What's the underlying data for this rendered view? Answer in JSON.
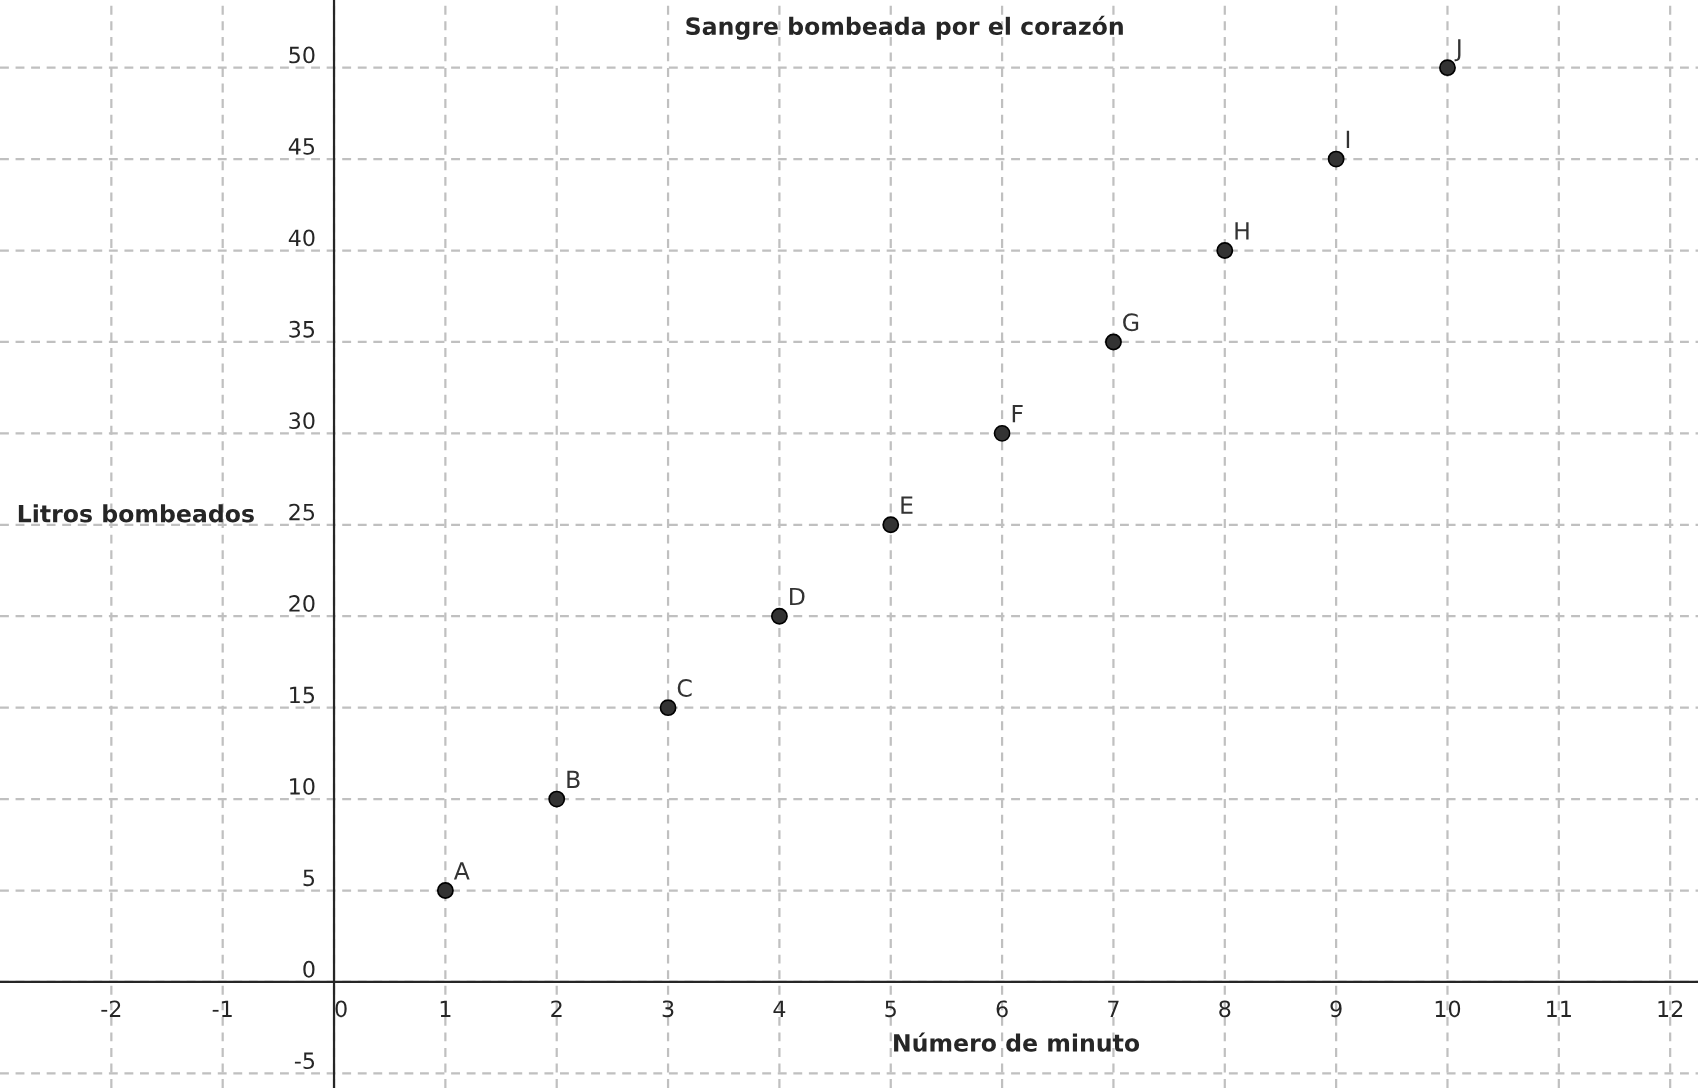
{
  "chart_data": {
    "type": "scatter",
    "title": "Sangre bombeada por el corazón",
    "xlabel": "Número de minuto",
    "ylabel": "Litros bombeados",
    "x": [
      1,
      2,
      3,
      4,
      5,
      6,
      7,
      8,
      9,
      10
    ],
    "series": [
      {
        "color": "#333333",
        "values": [
          5,
          10,
          15,
          20,
          25,
          30,
          35,
          40,
          45,
          50
        ]
      }
    ],
    "annotations": [
      {
        "text": "A",
        "x": 1,
        "y": 5
      },
      {
        "text": "B",
        "x": 2,
        "y": 10
      },
      {
        "text": "C",
        "x": 3,
        "y": 15
      },
      {
        "text": "D",
        "x": 4,
        "y": 20
      },
      {
        "text": "E",
        "x": 5,
        "y": 25
      },
      {
        "text": "F",
        "x": 6,
        "y": 30
      },
      {
        "text": "G",
        "x": 7,
        "y": 35
      },
      {
        "text": "H",
        "x": 8,
        "y": 40
      },
      {
        "text": "I",
        "x": 9,
        "y": 45
      },
      {
        "text": "J",
        "x": 10,
        "y": 50
      }
    ],
    "xlim": [
      -3.0,
      12.25
    ],
    "ylim": [
      -5.8,
      53.7
    ],
    "xticks": [
      -2,
      -1,
      0,
      1,
      2,
      3,
      4,
      5,
      6,
      7,
      8,
      9,
      10,
      11,
      12
    ],
    "yticks": [
      -5,
      0,
      5,
      10,
      15,
      20,
      25,
      30,
      35,
      40,
      45,
      50
    ],
    "grid": true,
    "marker": "circle",
    "legend": false
  }
}
